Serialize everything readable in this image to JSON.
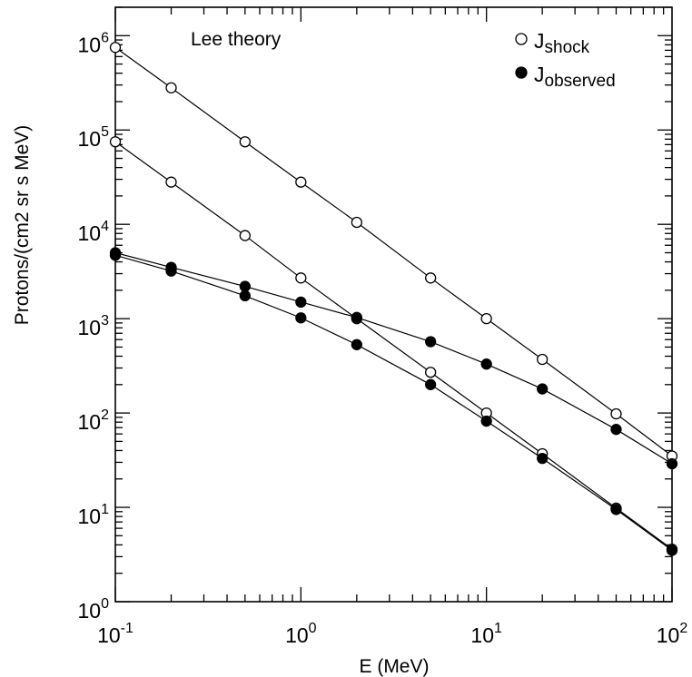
{
  "chart_data": {
    "type": "scatter",
    "title": "",
    "annotation": "Lee theory",
    "xlabel": "E (MeV)",
    "ylabel": "Protons/(cm2 sr s MeV)",
    "x_scale": "log",
    "y_scale": "log",
    "xlim": [
      0.1,
      100
    ],
    "ylim": [
      1,
      2000000
    ],
    "x_ticks": [
      {
        "base": "10",
        "exp": "-1",
        "value": 0.1
      },
      {
        "base": "10",
        "exp": "0",
        "value": 1
      },
      {
        "base": "10",
        "exp": "1",
        "value": 10
      },
      {
        "base": "10",
        "exp": "2",
        "value": 100
      }
    ],
    "y_ticks": [
      {
        "base": "10",
        "exp": "0",
        "value": 1
      },
      {
        "base": "10",
        "exp": "1",
        "value": 10
      },
      {
        "base": "10",
        "exp": "2",
        "value": 100
      },
      {
        "base": "10",
        "exp": "3",
        "value": 1000
      },
      {
        "base": "10",
        "exp": "4",
        "value": 10000
      },
      {
        "base": "10",
        "exp": "5",
        "value": 100000
      },
      {
        "base": "10",
        "exp": "6",
        "value": 1000000
      }
    ],
    "legend": {
      "position": "top-right",
      "entries": [
        {
          "base": "J",
          "sub": "shock",
          "marker": "open-circle"
        },
        {
          "base": "J",
          "sub": "observed",
          "marker": "filled-circle"
        }
      ]
    },
    "x": [
      0.1,
      0.2,
      0.5,
      1,
      2,
      5,
      10,
      20,
      50,
      100
    ],
    "series": [
      {
        "marker": "open",
        "values": [
          750000,
          280000,
          75000,
          28000,
          10500,
          2700,
          1000,
          370,
          98,
          35
        ]
      },
      {
        "marker": "open",
        "values": [
          75000,
          28000,
          7600,
          2700,
          1000,
          270,
          100,
          37,
          9.8,
          3.6
        ]
      },
      {
        "marker": "filled",
        "values": [
          5000,
          3500,
          2200,
          1500,
          1030,
          570,
          330,
          180,
          67,
          29
        ]
      },
      {
        "marker": "filled",
        "values": [
          4700,
          3200,
          1750,
          1020,
          530,
          200,
          82,
          33,
          9.5,
          3.5
        ]
      }
    ],
    "grid": false
  }
}
